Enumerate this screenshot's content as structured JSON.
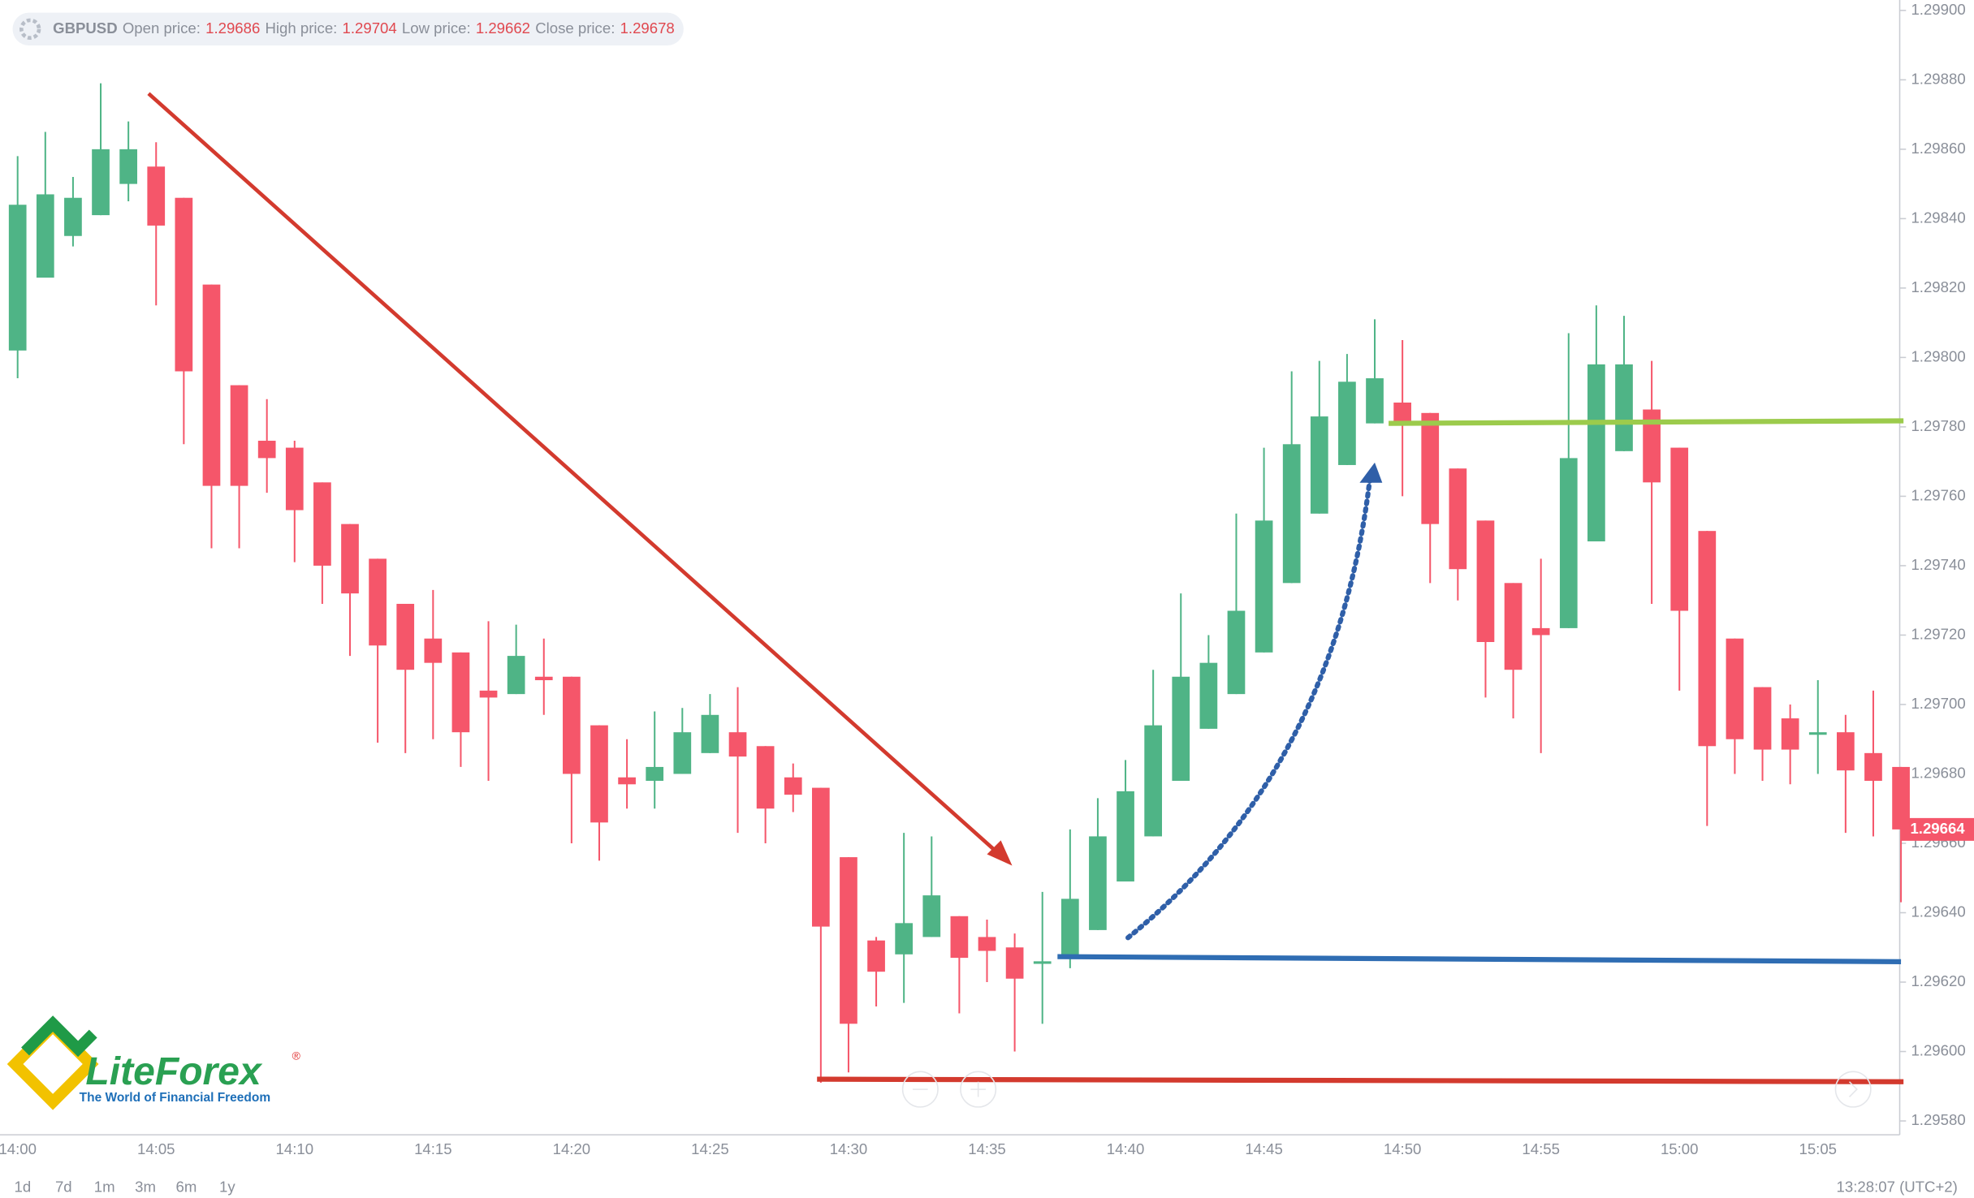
{
  "header": {
    "symbol": "GBPUSD",
    "fields": [
      {
        "label": "Open price:",
        "value": "1.29686"
      },
      {
        "label": "High price:",
        "value": "1.29704"
      },
      {
        "label": "Low price:",
        "value": "1.29662"
      },
      {
        "label": "Close price:",
        "value": "1.29678"
      }
    ]
  },
  "toolbar": {
    "ranges": [
      "1d",
      "7d",
      "1m",
      "3m",
      "6m",
      "1y"
    ],
    "clock": "13:28:07 (UTC+2)"
  },
  "logo": {
    "name": "LiteForex",
    "mark": "®",
    "tagline": "The World of Financial Freedom"
  },
  "chart_data": {
    "type": "candlestick",
    "up_color": "#4fb486",
    "down_color": "#f5566a",
    "categories": [
      "14:00",
      null,
      null,
      null,
      null,
      "14:05",
      null,
      null,
      null,
      null,
      "14:10",
      null,
      null,
      null,
      null,
      "14:15",
      null,
      null,
      null,
      null,
      "14:20",
      null,
      null,
      null,
      null,
      "14:25",
      null,
      null,
      null,
      null,
      "14:30",
      null,
      null,
      null,
      null,
      "14:35",
      null,
      null,
      null,
      null,
      "14:40",
      null,
      null,
      null,
      null,
      "14:45",
      null,
      null,
      null,
      null,
      "14:50",
      null,
      null,
      null,
      null,
      "14:55",
      null,
      null,
      null,
      null,
      "15:00",
      null,
      null,
      null,
      null,
      "15:05",
      null,
      null,
      null
    ],
    "open": [
      1.29802,
      1.29823,
      1.29835,
      1.29841,
      1.2985,
      1.29855,
      1.29846,
      1.29821,
      1.29792,
      1.29776,
      1.29774,
      1.29764,
      1.29752,
      1.29742,
      1.29729,
      1.29719,
      1.29715,
      1.29704,
      1.29703,
      1.29708,
      1.29708,
      1.29694,
      1.29679,
      1.29678,
      1.2968,
      1.29686,
      1.29692,
      1.29688,
      1.29679,
      1.29676,
      1.29656,
      1.29632,
      1.29628,
      1.29633,
      1.29639,
      1.29633,
      1.2963,
      1.29626,
      1.29627,
      1.29635,
      1.29649,
      1.29662,
      1.29678,
      1.29693,
      1.29703,
      1.29715,
      1.29735,
      1.29755,
      1.29769,
      1.29781,
      1.29787,
      1.29784,
      1.29768,
      1.29753,
      1.29735,
      1.29722,
      1.29722,
      1.29747,
      1.29773,
      1.29785,
      1.29774,
      1.2975,
      1.29719,
      1.29705,
      1.29696,
      1.29692,
      1.29692,
      1.29686,
      1.29682
    ],
    "high": [
      1.29858,
      1.29865,
      1.29852,
      1.29879,
      1.29868,
      1.29862,
      1.29846,
      1.29821,
      1.29792,
      1.29788,
      1.29776,
      1.29764,
      1.29752,
      1.29742,
      1.29729,
      1.29733,
      1.29715,
      1.29724,
      1.29723,
      1.29719,
      1.29708,
      1.29694,
      1.2969,
      1.29698,
      1.29699,
      1.29703,
      1.29705,
      1.29688,
      1.29683,
      1.29676,
      1.29656,
      1.29633,
      1.29663,
      1.29662,
      1.29639,
      1.29638,
      1.29634,
      1.29646,
      1.29664,
      1.29673,
      1.29684,
      1.2971,
      1.29732,
      1.2972,
      1.29755,
      1.29774,
      1.29796,
      1.29799,
      1.29801,
      1.29811,
      1.29805,
      1.29784,
      1.29768,
      1.29753,
      1.29735,
      1.29742,
      1.29807,
      1.29815,
      1.29812,
      1.29799,
      1.29774,
      1.2975,
      1.29719,
      1.29705,
      1.297,
      1.29707,
      1.29697,
      1.29704,
      1.29682
    ],
    "low": [
      1.29794,
      1.29823,
      1.29832,
      1.29841,
      1.29845,
      1.29815,
      1.29775,
      1.29745,
      1.29745,
      1.29761,
      1.29741,
      1.29729,
      1.29714,
      1.29689,
      1.29686,
      1.2969,
      1.29682,
      1.29678,
      1.29703,
      1.29697,
      1.2966,
      1.29655,
      1.2967,
      1.2967,
      1.2968,
      1.29686,
      1.29663,
      1.2966,
      1.29669,
      1.29591,
      1.29594,
      1.29613,
      1.29614,
      1.29633,
      1.29611,
      1.2962,
      1.296,
      1.29608,
      1.29624,
      1.29635,
      1.29649,
      1.29662,
      1.29678,
      1.29693,
      1.29703,
      1.29715,
      1.29735,
      1.29755,
      1.29769,
      1.29781,
      1.2976,
      1.29735,
      1.2973,
      1.29702,
      1.29696,
      1.29686,
      1.29722,
      1.29747,
      1.29773,
      1.29729,
      1.29704,
      1.29665,
      1.2968,
      1.29678,
      1.29677,
      1.2968,
      1.29663,
      1.29662,
      1.29643
    ],
    "close": [
      1.29844,
      1.29847,
      1.29846,
      1.2986,
      1.2986,
      1.29838,
      1.29796,
      1.29763,
      1.29763,
      1.29771,
      1.29756,
      1.2974,
      1.29732,
      1.29717,
      1.2971,
      1.29712,
      1.29692,
      1.29702,
      1.29714,
      1.29707,
      1.2968,
      1.29666,
      1.29677,
      1.29682,
      1.29692,
      1.29697,
      1.29685,
      1.2967,
      1.29674,
      1.29636,
      1.29608,
      1.29623,
      1.29637,
      1.29645,
      1.29627,
      1.29629,
      1.29621,
      1.29626,
      1.29644,
      1.29662,
      1.29675,
      1.29694,
      1.29708,
      1.29712,
      1.29727,
      1.29753,
      1.29775,
      1.29783,
      1.29793,
      1.29794,
      1.29781,
      1.29752,
      1.29739,
      1.29718,
      1.2971,
      1.2972,
      1.29771,
      1.29798,
      1.29798,
      1.29764,
      1.29727,
      1.29688,
      1.2969,
      1.29687,
      1.29687,
      1.29692,
      1.29681,
      1.29678,
      1.29664
    ],
    "ylim": [
      1.29576,
      1.29903
    ],
    "yticks": [
      {
        "value": 1.2958,
        "label": "1.29580"
      },
      {
        "value": 1.296,
        "label": "1.29600"
      },
      {
        "value": 1.2962,
        "label": "1.29620"
      },
      {
        "value": 1.2964,
        "label": "1.29640"
      },
      {
        "value": 1.2966,
        "label": "1.29660"
      },
      {
        "value": 1.2968,
        "label": "1.29680"
      },
      {
        "value": 1.297,
        "label": "1.29700"
      },
      {
        "value": 1.2972,
        "label": "1.29720"
      },
      {
        "value": 1.2974,
        "label": "1.29740"
      },
      {
        "value": 1.2976,
        "label": "1.29760"
      },
      {
        "value": 1.2978,
        "label": "1.29780"
      },
      {
        "value": 1.298,
        "label": "1.29800"
      },
      {
        "value": 1.2982,
        "label": "1.29820"
      },
      {
        "value": 1.2984,
        "label": "1.29840"
      },
      {
        "value": 1.2986,
        "label": "1.29860"
      },
      {
        "value": 1.2988,
        "label": "1.29880"
      },
      {
        "value": 1.299,
        "label": "1.29900"
      }
    ],
    "last_price": {
      "value": 1.29664,
      "label": "1.29664"
    },
    "grid": false
  }
}
